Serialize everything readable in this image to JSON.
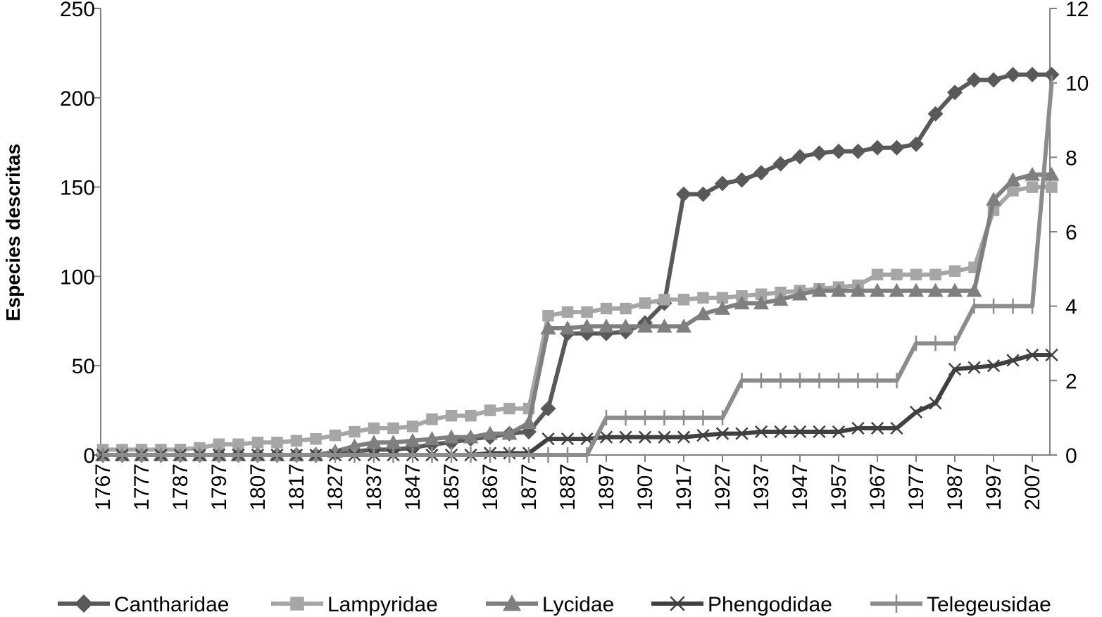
{
  "chart_data": {
    "type": "line",
    "ylabel": "Especies descritas",
    "xlabel": "",
    "ylim_left": [
      0,
      250
    ],
    "yticks_left": [
      0,
      50,
      100,
      150,
      200,
      250
    ],
    "ylim_right": [
      0,
      12
    ],
    "yticks_right": [
      0,
      2,
      4,
      6,
      8,
      10,
      12
    ],
    "grid": false,
    "legend_position": "bottom",
    "x": [
      1767,
      1772,
      1777,
      1782,
      1787,
      1792,
      1797,
      1802,
      1807,
      1812,
      1817,
      1822,
      1827,
      1832,
      1837,
      1842,
      1847,
      1852,
      1857,
      1862,
      1867,
      1872,
      1877,
      1882,
      1887,
      1892,
      1897,
      1902,
      1907,
      1912,
      1917,
      1922,
      1927,
      1932,
      1937,
      1942,
      1947,
      1952,
      1957,
      1962,
      1967,
      1972,
      1977,
      1982,
      1987,
      1992,
      1997,
      2002,
      2007,
      2012
    ],
    "x_tick_labels": [
      "1767",
      "1777",
      "1787",
      "1797",
      "1807",
      "1817",
      "1827",
      "1837",
      "1847",
      "1857",
      "1867",
      "1877",
      "1887",
      "1897",
      "1907",
      "1917",
      "1927",
      "1937",
      "1947",
      "1957",
      "1967",
      "1977",
      "1987",
      "1997",
      "2007"
    ],
    "series": [
      {
        "name": "Cantharidae",
        "axis": "left",
        "color": "#595959",
        "marker": "diamond",
        "values": [
          0,
          0,
          0,
          0,
          0,
          0,
          0,
          0,
          0,
          0,
          0,
          0,
          1,
          2,
          3,
          3,
          4,
          6,
          7,
          9,
          10,
          12,
          13,
          26,
          68,
          68,
          68,
          69,
          74,
          85,
          146,
          146,
          152,
          154,
          158,
          163,
          167,
          169,
          170,
          170,
          172,
          172,
          174,
          191,
          203,
          210,
          210,
          213,
          213,
          213
        ]
      },
      {
        "name": "Lampyridae",
        "axis": "left",
        "color": "#a6a6a6",
        "marker": "square",
        "values": [
          3,
          3,
          3,
          3,
          3,
          4,
          6,
          6,
          7,
          7,
          8,
          9,
          11,
          13,
          15,
          15,
          16,
          20,
          22,
          22,
          25,
          26,
          26,
          78,
          80,
          80,
          82,
          82,
          85,
          87,
          87,
          88,
          88,
          89,
          90,
          91,
          92,
          93,
          94,
          95,
          101,
          101,
          101,
          101,
          103,
          105,
          137,
          148,
          150,
          150
        ]
      },
      {
        "name": "Lycidae",
        "axis": "left",
        "color": "#7f7f7f",
        "marker": "triangle",
        "values": [
          0,
          0,
          0,
          0,
          0,
          0,
          0,
          0,
          0,
          0,
          0,
          0,
          2,
          5,
          7,
          7,
          8,
          9,
          10,
          10,
          12,
          12,
          18,
          71,
          71,
          72,
          72,
          72,
          72,
          72,
          72,
          79,
          82,
          85,
          85,
          87,
          90,
          92,
          92,
          92,
          92,
          92,
          92,
          92,
          92,
          92,
          143,
          154,
          157,
          157
        ]
      },
      {
        "name": "Phengodidae",
        "axis": "left",
        "color": "#404040",
        "marker": "x",
        "values": [
          0,
          0,
          0,
          0,
          0,
          0,
          0,
          0,
          0,
          0,
          0,
          0,
          0,
          0,
          0,
          0,
          0,
          0,
          0,
          0,
          1,
          1,
          1,
          9,
          9,
          9,
          10,
          10,
          10,
          10,
          10,
          11,
          12,
          12,
          13,
          13,
          13,
          13,
          13,
          15,
          15,
          15,
          24,
          29,
          48,
          49,
          50,
          53,
          56,
          56
        ]
      },
      {
        "name": "Telegeusidae",
        "axis": "right",
        "color": "#8c8c8c",
        "marker": "plus",
        "values": [
          0,
          0,
          0,
          0,
          0,
          0,
          0,
          0,
          0,
          0,
          0,
          0,
          0,
          0,
          0,
          0,
          0,
          0,
          0,
          0,
          0,
          0,
          0,
          0,
          0,
          0,
          1,
          1,
          1,
          1,
          1,
          1,
          1,
          2,
          2,
          2,
          2,
          2,
          2,
          2,
          2,
          2,
          3,
          3,
          3,
          4,
          4,
          4,
          4,
          10
        ]
      }
    ]
  }
}
